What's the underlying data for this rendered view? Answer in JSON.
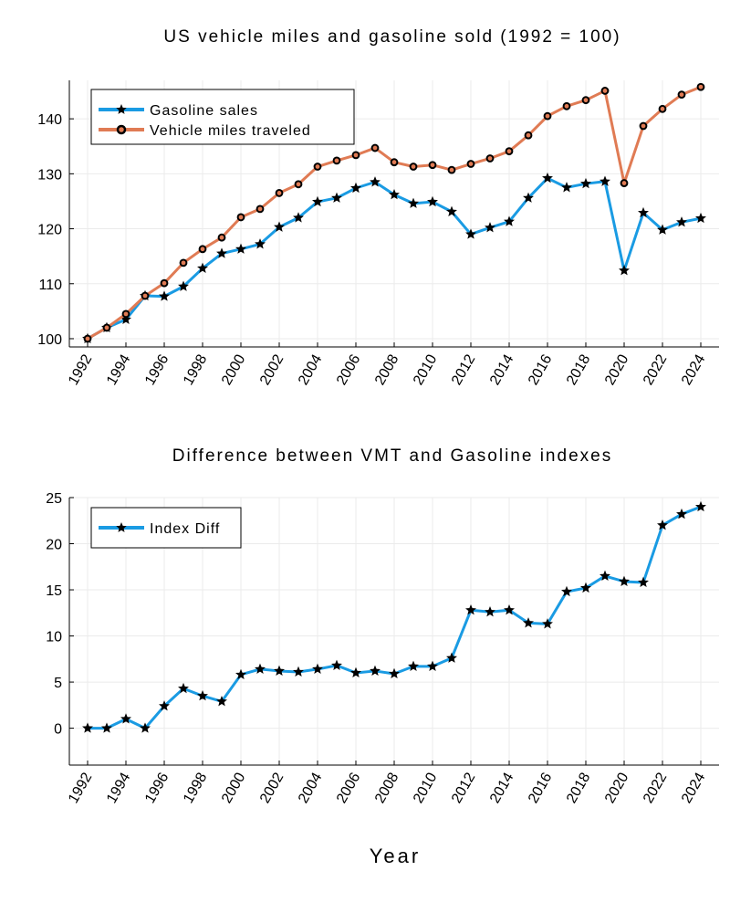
{
  "chart_data": [
    {
      "type": "line",
      "title": "US vehicle miles and gasoline sold (1992 = 100)",
      "xlabel": "",
      "ylabel": "",
      "x": [
        1992,
        1993,
        1994,
        1995,
        1996,
        1997,
        1998,
        1999,
        2000,
        2001,
        2002,
        2003,
        2004,
        2005,
        2006,
        2007,
        2008,
        2009,
        2010,
        2011,
        2012,
        2013,
        2014,
        2015,
        2016,
        2017,
        2018,
        2019,
        2020,
        2021,
        2022,
        2023,
        2024
      ],
      "xticks": [
        "1992",
        "1994",
        "1996",
        "1998",
        "2000",
        "2002",
        "2004",
        "2006",
        "2008",
        "2010",
        "2012",
        "2014",
        "2016",
        "2018",
        "2020",
        "2022",
        "2024"
      ],
      "yticks": [
        "100",
        "110",
        "120",
        "130",
        "140"
      ],
      "ylim": [
        98.5,
        147
      ],
      "legend_position": "top-left",
      "series": [
        {
          "name": "Gasoline sales",
          "color": "#1a9be3",
          "marker": "star",
          "values": [
            100,
            102,
            103.5,
            107.8,
            107.7,
            109.5,
            112.8,
            115.5,
            116.3,
            117.2,
            120.3,
            122,
            124.9,
            125.6,
            127.4,
            128.5,
            126.2,
            124.6,
            124.9,
            123.1,
            119,
            120.2,
            121.3,
            125.6,
            129.2,
            127.5,
            128.2,
            128.6,
            112.4,
            122.9,
            119.8,
            121.2,
            121.9
          ]
        },
        {
          "name": "Vehicle miles traveled",
          "color": "#e07b54",
          "marker": "circle",
          "values": [
            100,
            102,
            104.5,
            107.8,
            110.1,
            113.8,
            116.3,
            118.4,
            122.1,
            123.6,
            126.5,
            128.1,
            131.3,
            132.4,
            133.4,
            134.7,
            132.1,
            131.3,
            131.6,
            130.7,
            131.8,
            132.8,
            134.1,
            137,
            140.5,
            142.3,
            143.4,
            145.1,
            128.3,
            138.7,
            141.8,
            144.4,
            145.8
          ]
        }
      ]
    },
    {
      "type": "line",
      "title": "Difference between VMT and Gasoline indexes",
      "xlabel": "Year",
      "ylabel": "",
      "x": [
        1992,
        1993,
        1994,
        1995,
        1996,
        1997,
        1998,
        1999,
        2000,
        2001,
        2002,
        2003,
        2004,
        2005,
        2006,
        2007,
        2008,
        2009,
        2010,
        2011,
        2012,
        2013,
        2014,
        2015,
        2016,
        2017,
        2018,
        2019,
        2020,
        2021,
        2022,
        2023,
        2024
      ],
      "xticks": [
        "1992",
        "1994",
        "1996",
        "1998",
        "2000",
        "2002",
        "2004",
        "2006",
        "2008",
        "2010",
        "2012",
        "2014",
        "2016",
        "2018",
        "2020",
        "2022",
        "2024"
      ],
      "yticks": [
        "0",
        "5",
        "10",
        "15",
        "20",
        "25"
      ],
      "ylim": [
        -4,
        25
      ],
      "legend_position": "top-left",
      "series": [
        {
          "name": "Index Diff",
          "color": "#1a9be3",
          "marker": "star",
          "values": [
            0,
            0,
            1,
            0,
            2.4,
            4.3,
            3.5,
            2.9,
            5.8,
            6.4,
            6.2,
            6.1,
            6.4,
            6.8,
            6,
            6.2,
            5.9,
            6.7,
            6.7,
            7.6,
            12.8,
            12.6,
            12.8,
            11.4,
            11.3,
            14.8,
            15.2,
            16.5,
            15.9,
            15.8,
            22,
            23.2,
            24
          ]
        }
      ]
    }
  ]
}
